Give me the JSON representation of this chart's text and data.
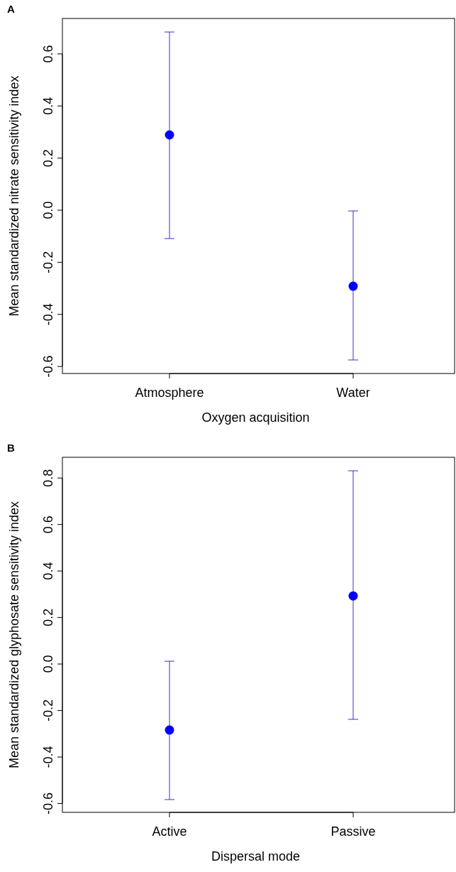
{
  "chart_data": [
    {
      "type": "scatter",
      "title": "A",
      "xlabel": "Oxygen acquisition",
      "ylabel": "Mean standardized nitrate sensitivity index",
      "categories": [
        "Atmosphere",
        "Water"
      ],
      "series": [
        {
          "color": "#0000ff",
          "values": [
            0.289,
            -0.292
          ],
          "errors": [
            [
              -0.109,
              0.684
            ],
            [
              -0.575,
              -0.003
            ]
          ]
        }
      ],
      "ylim": [
        -0.627,
        0.736
      ],
      "yticks": [
        {
          "value": -0.6,
          "label": "-0.6"
        },
        {
          "value": -0.4,
          "label": "-0.4"
        },
        {
          "value": -0.2,
          "label": "-0.2"
        },
        {
          "value": 0,
          "label": "0.0"
        },
        {
          "value": 0.2,
          "label": "0.2"
        },
        {
          "value": 0.4,
          "label": "0.4"
        },
        {
          "value": 0.6,
          "label": "0.6"
        }
      ],
      "marker": "circle",
      "grid": false
    },
    {
      "type": "scatter",
      "title": "B",
      "xlabel": "Dispersal mode",
      "ylabel": "Mean standardized glyphosate sensitivity index",
      "categories": [
        "Active",
        "Passive"
      ],
      "series": [
        {
          "color": "#0000ff",
          "values": [
            -0.284,
            0.293
          ],
          "errors": [
            [
              -0.583,
              0.012
            ],
            [
              -0.238,
              0.831
            ]
          ]
        }
      ],
      "ylim": [
        -0.638,
        0.889
      ],
      "yticks": [
        {
          "value": -0.6,
          "label": "-0.6"
        },
        {
          "value": -0.4,
          "label": "-0.4"
        },
        {
          "value": -0.2,
          "label": "-0.2"
        },
        {
          "value": 0,
          "label": "0.0"
        },
        {
          "value": 0.2,
          "label": "0.2"
        },
        {
          "value": 0.4,
          "label": "0.4"
        },
        {
          "value": 0.6,
          "label": "0.6"
        },
        {
          "value": 0.8,
          "label": "0.8"
        }
      ],
      "marker": "circle",
      "grid": false
    }
  ]
}
